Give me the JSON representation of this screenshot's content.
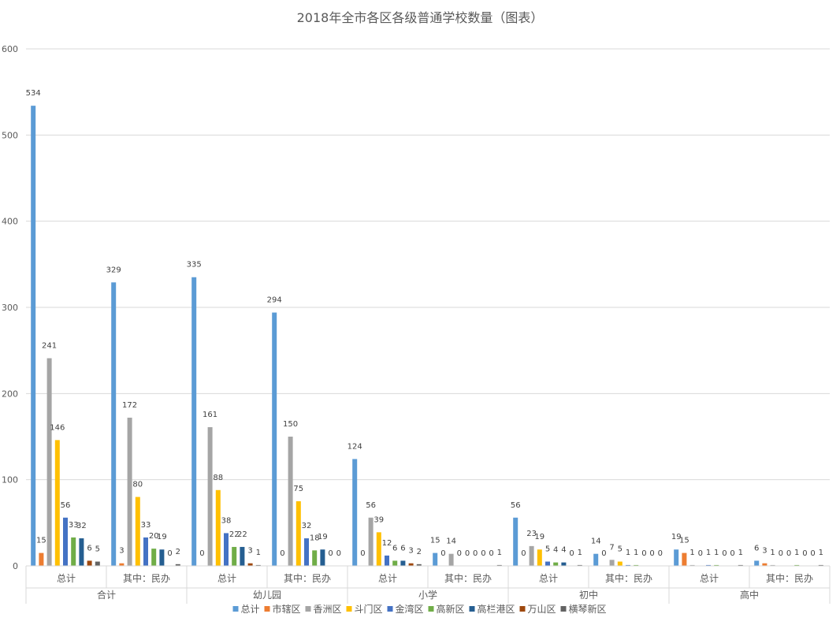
{
  "chart_data": {
    "type": "bar",
    "title": "2018年全市各区各级普通学校数量（图表）",
    "ylim": [
      0,
      600
    ],
    "yticks": [
      0,
      100,
      200,
      300,
      400,
      500,
      600
    ],
    "grid": true,
    "legend_position": "bottom",
    "groups": [
      {
        "label": "合计",
        "categories": [
          "总计",
          "其中：民办"
        ]
      },
      {
        "label": "幼儿园",
        "categories": [
          "总计",
          "其中：民办"
        ]
      },
      {
        "label": "小学",
        "categories": [
          "总计",
          "其中：民办"
        ]
      },
      {
        "label": "初中",
        "categories": [
          "总计",
          "其中：民办"
        ]
      },
      {
        "label": "高中",
        "categories": [
          "总计",
          "其中：民办"
        ]
      }
    ],
    "series": [
      {
        "name": "总计",
        "color": "#5B9BD5",
        "values": [
          534,
          329,
          335,
          294,
          124,
          15,
          56,
          14,
          19,
          6
        ]
      },
      {
        "name": "市辖区",
        "color": "#ED7D31",
        "values": [
          15,
          3,
          0,
          0,
          0,
          0,
          0,
          0,
          15,
          3
        ]
      },
      {
        "name": "香洲区",
        "color": "#A5A5A5",
        "values": [
          241,
          172,
          161,
          150,
          56,
          14,
          23,
          7,
          1,
          1
        ]
      },
      {
        "name": "斗门区",
        "color": "#FFC000",
        "values": [
          146,
          80,
          88,
          75,
          39,
          0,
          19,
          5,
          0,
          0
        ]
      },
      {
        "name": "金湾区",
        "color": "#4472C4",
        "values": [
          56,
          33,
          38,
          32,
          12,
          0,
          5,
          1,
          1,
          0
        ]
      },
      {
        "name": "高新区",
        "color": "#70AD47",
        "values": [
          33,
          20,
          22,
          18,
          6,
          0,
          4,
          1,
          1,
          1
        ]
      },
      {
        "name": "高栏港区",
        "color": "#255E91",
        "values": [
          32,
          19,
          22,
          19,
          6,
          0,
          4,
          0,
          0,
          0
        ]
      },
      {
        "name": "万山区",
        "color": "#9E480E",
        "values": [
          6,
          0,
          3,
          0,
          3,
          0,
          0,
          0,
          0,
          0
        ]
      },
      {
        "name": "横琴新区",
        "color": "#636363",
        "values": [
          5,
          2,
          1,
          0,
          2,
          1,
          1,
          0,
          1,
          1
        ]
      }
    ]
  }
}
